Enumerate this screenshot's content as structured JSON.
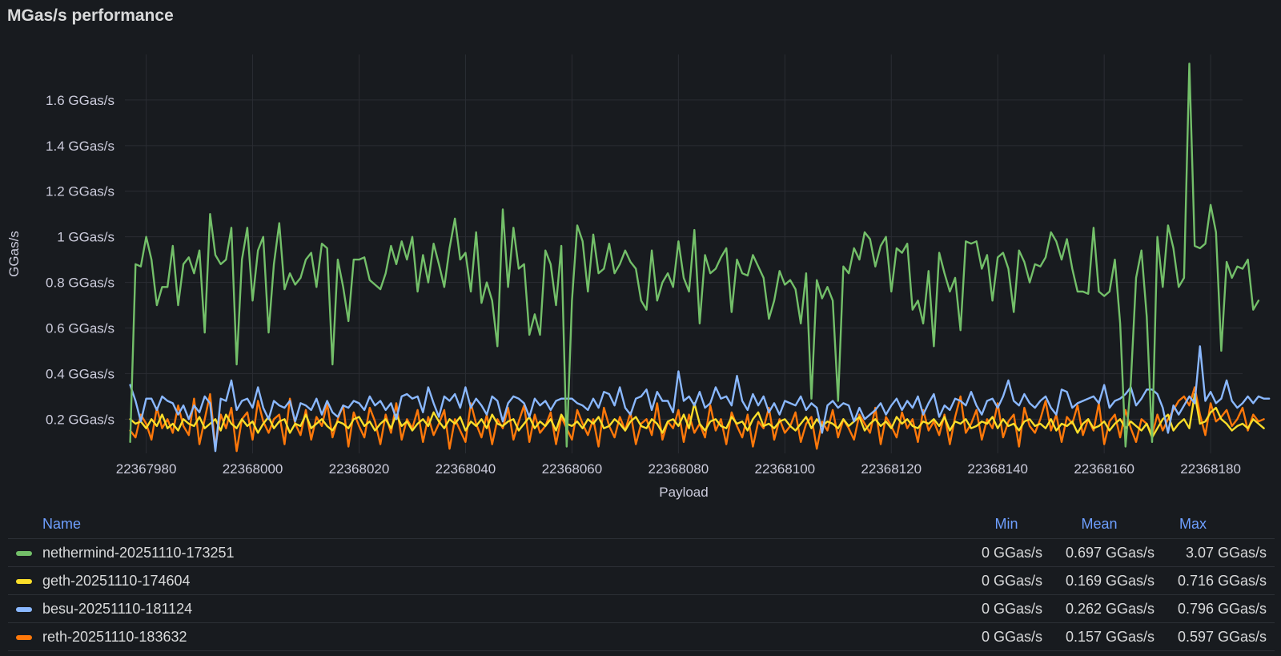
{
  "panel": {
    "title": "MGas/s performance"
  },
  "chart_data": {
    "type": "line",
    "title": "MGas/s performance",
    "xlabel": "Payload",
    "ylabel": "GGas/s",
    "xlim": [
      22367976,
      22368186
    ],
    "ylim": [
      0.05,
      1.8
    ],
    "y_ticks": [
      0.2,
      0.4,
      0.6,
      0.8,
      1.0,
      1.2,
      1.4,
      1.6
    ],
    "y_tick_labels": [
      "0.2 GGas/s",
      "0.4 GGas/s",
      "0.6 GGas/s",
      "0.8 GGas/s",
      "1 GGas/s",
      "1.2 GGas/s",
      "1.4 GGas/s",
      "1.6 GGas/s"
    ],
    "x_ticks": [
      22367980,
      22368000,
      22368020,
      22368040,
      22368060,
      22368080,
      22368100,
      22368120,
      22368140,
      22368160,
      22368180
    ],
    "x_tick_labels": [
      "22367980",
      "22368000",
      "22368020",
      "22368040",
      "22368060",
      "22368080",
      "22368100",
      "22368120",
      "22368140",
      "22368160",
      "22368180"
    ],
    "grid": true,
    "legend_position": "bottom",
    "series": [
      {
        "name": "nethermind-20251110-173251",
        "color": "#73bf69",
        "x_start": 22367977,
        "values": [
          0.1,
          0.88,
          0.87,
          1.0,
          0.9,
          0.7,
          0.78,
          0.78,
          0.96,
          0.7,
          0.88,
          0.91,
          0.84,
          0.94,
          0.58,
          1.1,
          0.92,
          0.88,
          0.9,
          1.04,
          0.44,
          0.9,
          1.04,
          0.72,
          0.94,
          1.0,
          0.58,
          0.88,
          1.06,
          0.77,
          0.84,
          0.79,
          0.82,
          0.9,
          0.93,
          0.78,
          0.97,
          0.95,
          0.44,
          0.9,
          0.78,
          0.63,
          0.9,
          0.9,
          0.91,
          0.81,
          0.79,
          0.77,
          0.84,
          0.96,
          0.88,
          0.98,
          0.9,
          1.0,
          0.76,
          0.92,
          0.8,
          0.97,
          0.88,
          0.78,
          0.95,
          1.08,
          0.9,
          0.93,
          0.76,
          1.02,
          0.71,
          0.8,
          0.72,
          0.52,
          1.12,
          0.78,
          1.04,
          0.86,
          0.88,
          0.57,
          0.66,
          0.57,
          0.94,
          0.88,
          0.7,
          0.96,
          0.08,
          0.72,
          1.05,
          0.98,
          0.76,
          1.01,
          0.84,
          0.86,
          0.97,
          0.84,
          0.88,
          0.94,
          0.89,
          0.86,
          0.72,
          0.68,
          0.94,
          0.72,
          0.8,
          0.84,
          0.78,
          0.98,
          0.82,
          0.76,
          1.03,
          0.62,
          0.92,
          0.84,
          0.86,
          0.91,
          0.95,
          0.67,
          0.9,
          0.84,
          0.83,
          0.92,
          0.87,
          0.82,
          0.64,
          0.72,
          0.85,
          0.79,
          0.81,
          0.77,
          0.62,
          0.84,
          0.29,
          0.81,
          0.73,
          0.78,
          0.72,
          0.28,
          0.87,
          0.84,
          0.95,
          0.9,
          1.02,
          0.99,
          0.87,
          0.96,
          1.0,
          0.76,
          0.95,
          0.93,
          0.97,
          0.68,
          0.72,
          0.62,
          0.85,
          0.52,
          0.93,
          0.84,
          0.76,
          0.82,
          0.59,
          0.98,
          0.97,
          0.98,
          0.86,
          0.92,
          0.72,
          0.91,
          0.93,
          0.86,
          0.67,
          0.94,
          0.89,
          0.8,
          0.88,
          0.87,
          0.91,
          1.02,
          0.98,
          0.9,
          0.99,
          0.86,
          0.76,
          0.76,
          0.75,
          1.04,
          0.76,
          0.74,
          0.76,
          0.9,
          0.62,
          0.08,
          0.36,
          0.82,
          0.94,
          0.65,
          0.1,
          1.0,
          0.78,
          1.05,
          0.95,
          0.78,
          0.82,
          1.76,
          0.96,
          0.95,
          0.97,
          1.14,
          1.02,
          0.5,
          0.89,
          0.82,
          0.87,
          0.86,
          0.9,
          0.68,
          0.72
        ]
      },
      {
        "name": "geth-20251110-174604",
        "color": "#fade2a",
        "x_start": 22367977,
        "values": [
          0.2,
          0.18,
          0.19,
          0.16,
          0.2,
          0.17,
          0.22,
          0.16,
          0.18,
          0.15,
          0.2,
          0.18,
          0.17,
          0.21,
          0.16,
          0.18,
          0.2,
          0.15,
          0.22,
          0.18,
          0.16,
          0.2,
          0.17,
          0.19,
          0.14,
          0.18,
          0.21,
          0.16,
          0.19,
          0.2,
          0.14,
          0.18,
          0.17,
          0.22,
          0.16,
          0.18,
          0.2,
          0.17,
          0.15,
          0.19,
          0.18,
          0.16,
          0.2,
          0.21,
          0.17,
          0.19,
          0.15,
          0.18,
          0.2,
          0.16,
          0.22,
          0.17,
          0.19,
          0.15,
          0.18,
          0.2,
          0.17,
          0.23,
          0.19,
          0.16,
          0.2,
          0.18,
          0.21,
          0.15,
          0.19,
          0.17,
          0.2,
          0.16,
          0.22,
          0.18,
          0.17,
          0.19,
          0.2,
          0.15,
          0.18,
          0.21,
          0.16,
          0.19,
          0.17,
          0.2,
          0.15,
          0.22,
          0.18,
          0.17,
          0.19,
          0.16,
          0.2,
          0.18,
          0.21,
          0.16,
          0.17,
          0.2,
          0.18,
          0.15,
          0.19,
          0.21,
          0.17,
          0.16,
          0.2,
          0.18,
          0.14,
          0.19,
          0.2,
          0.17,
          0.22,
          0.16,
          0.27,
          0.18,
          0.15,
          0.19,
          0.2,
          0.17,
          0.16,
          0.21,
          0.18,
          0.19,
          0.15,
          0.2,
          0.23,
          0.17,
          0.18,
          0.16,
          0.19,
          0.2,
          0.17,
          0.15,
          0.18,
          0.21,
          0.16,
          0.2,
          0.17,
          0.19,
          0.18,
          0.16,
          0.2,
          0.17,
          0.19,
          0.21,
          0.15,
          0.18,
          0.2,
          0.17,
          0.19,
          0.16,
          0.21,
          0.18,
          0.2,
          0.17,
          0.16,
          0.19,
          0.18,
          0.2,
          0.17,
          0.21,
          0.15,
          0.19,
          0.18,
          0.2,
          0.16,
          0.17,
          0.19,
          0.18,
          0.21,
          0.16,
          0.2,
          0.17,
          0.18,
          0.15,
          0.19,
          0.2,
          0.17,
          0.18,
          0.16,
          0.2,
          0.15,
          0.18,
          0.17,
          0.19,
          0.14,
          0.18,
          0.2,
          0.16,
          0.17,
          0.19,
          0.15,
          0.18,
          0.2,
          0.16,
          0.19,
          0.17,
          0.15,
          0.18,
          0.12,
          0.16,
          0.2,
          0.22,
          0.15,
          0.18,
          0.2,
          0.16,
          0.31,
          0.18,
          0.19,
          0.23,
          0.25,
          0.2,
          0.18,
          0.15,
          0.17,
          0.18,
          0.16,
          0.2,
          0.18,
          0.16
        ]
      },
      {
        "name": "besu-20251110-181124",
        "color": "#8ab8ff",
        "x_start": 22367977,
        "values": [
          0.35,
          0.28,
          0.19,
          0.29,
          0.29,
          0.24,
          0.3,
          0.28,
          0.27,
          0.22,
          0.26,
          0.2,
          0.26,
          0.23,
          0.3,
          0.27,
          0.06,
          0.29,
          0.28,
          0.37,
          0.24,
          0.28,
          0.29,
          0.25,
          0.34,
          0.25,
          0.2,
          0.28,
          0.26,
          0.25,
          0.28,
          0.19,
          0.27,
          0.26,
          0.24,
          0.29,
          0.22,
          0.28,
          0.23,
          0.21,
          0.26,
          0.25,
          0.28,
          0.27,
          0.24,
          0.3,
          0.26,
          0.28,
          0.24,
          0.27,
          0.2,
          0.3,
          0.31,
          0.29,
          0.3,
          0.23,
          0.34,
          0.27,
          0.21,
          0.3,
          0.28,
          0.31,
          0.25,
          0.34,
          0.25,
          0.29,
          0.26,
          0.22,
          0.3,
          0.28,
          0.19,
          0.27,
          0.3,
          0.29,
          0.27,
          0.21,
          0.29,
          0.26,
          0.28,
          0.24,
          0.28,
          0.29,
          0.29,
          0.29,
          0.27,
          0.26,
          0.24,
          0.29,
          0.25,
          0.32,
          0.31,
          0.26,
          0.34,
          0.25,
          0.22,
          0.29,
          0.3,
          0.33,
          0.24,
          0.32,
          0.28,
          0.28,
          0.23,
          0.41,
          0.28,
          0.3,
          0.26,
          0.32,
          0.25,
          0.27,
          0.34,
          0.29,
          0.3,
          0.26,
          0.39,
          0.28,
          0.24,
          0.31,
          0.26,
          0.3,
          0.23,
          0.27,
          0.22,
          0.28,
          0.27,
          0.26,
          0.3,
          0.24,
          0.27,
          0.25,
          0.14,
          0.26,
          0.28,
          0.25,
          0.27,
          0.26,
          0.19,
          0.25,
          0.2,
          0.22,
          0.24,
          0.27,
          0.22,
          0.26,
          0.29,
          0.24,
          0.28,
          0.25,
          0.3,
          0.22,
          0.27,
          0.31,
          0.21,
          0.26,
          0.24,
          0.29,
          0.28,
          0.26,
          0.32,
          0.26,
          0.22,
          0.28,
          0.29,
          0.25,
          0.3,
          0.37,
          0.28,
          0.26,
          0.31,
          0.27,
          0.25,
          0.28,
          0.3,
          0.25,
          0.22,
          0.33,
          0.32,
          0.25,
          0.27,
          0.28,
          0.29,
          0.3,
          0.27,
          0.35,
          0.25,
          0.28,
          0.29,
          0.31,
          0.34,
          0.26,
          0.29,
          0.33,
          0.33,
          0.31,
          0.25,
          0.14,
          0.26,
          0.22,
          0.26,
          0.3,
          0.27,
          0.52,
          0.28,
          0.32,
          0.27,
          0.29,
          0.37,
          0.28,
          0.25,
          0.27,
          0.3,
          0.27,
          0.3,
          0.29,
          0.29
        ]
      },
      {
        "name": "reth-20251110-183632",
        "color": "#ff780a",
        "x_start": 22367977,
        "values": [
          0.15,
          0.12,
          0.22,
          0.18,
          0.11,
          0.25,
          0.16,
          0.2,
          0.14,
          0.26,
          0.17,
          0.13,
          0.29,
          0.09,
          0.2,
          0.31,
          0.08,
          0.22,
          0.16,
          0.25,
          0.06,
          0.2,
          0.23,
          0.11,
          0.28,
          0.19,
          0.14,
          0.2,
          0.22,
          0.09,
          0.29,
          0.18,
          0.13,
          0.24,
          0.11,
          0.21,
          0.17,
          0.27,
          0.12,
          0.2,
          0.26,
          0.08,
          0.23,
          0.17,
          0.12,
          0.25,
          0.19,
          0.09,
          0.22,
          0.14,
          0.27,
          0.11,
          0.2,
          0.16,
          0.24,
          0.1,
          0.21,
          0.13,
          0.18,
          0.24,
          0.07,
          0.2,
          0.15,
          0.1,
          0.27,
          0.18,
          0.12,
          0.22,
          0.09,
          0.2,
          0.16,
          0.25,
          0.11,
          0.19,
          0.26,
          0.1,
          0.22,
          0.14,
          0.17,
          0.23,
          0.09,
          0.21,
          0.16,
          0.11,
          0.24,
          0.18,
          0.13,
          0.2,
          0.08,
          0.25,
          0.17,
          0.12,
          0.21,
          0.15,
          0.23,
          0.09,
          0.18,
          0.2,
          0.13,
          0.27,
          0.11,
          0.19,
          0.16,
          0.24,
          0.1,
          0.22,
          0.14,
          0.18,
          0.12,
          0.26,
          0.15,
          0.2,
          0.09,
          0.23,
          0.17,
          0.12,
          0.22,
          0.08,
          0.19,
          0.16,
          0.25,
          0.11,
          0.2,
          0.14,
          0.17,
          0.23,
          0.1,
          0.18,
          0.21,
          0.07,
          0.19,
          0.15,
          0.24,
          0.12,
          0.2,
          0.16,
          0.11,
          0.22,
          0.18,
          0.14,
          0.25,
          0.09,
          0.21,
          0.17,
          0.12,
          0.23,
          0.16,
          0.2,
          0.1,
          0.24,
          0.15,
          0.19,
          0.13,
          0.22,
          0.09,
          0.21,
          0.3,
          0.14,
          0.18,
          0.24,
          0.11,
          0.2,
          0.16,
          0.27,
          0.12,
          0.19,
          0.22,
          0.08,
          0.25,
          0.17,
          0.14,
          0.2,
          0.28,
          0.15,
          0.22,
          0.1,
          0.21,
          0.18,
          0.26,
          0.13,
          0.2,
          0.15,
          0.27,
          0.09,
          0.19,
          0.22,
          0.12,
          0.24,
          0.16,
          0.1,
          0.2,
          0.18,
          0.13,
          0.22,
          0.15,
          0.2,
          0.24,
          0.28,
          0.3,
          0.26,
          0.34,
          0.22,
          0.13,
          0.27,
          0.19,
          0.21,
          0.24,
          0.17,
          0.2,
          0.25,
          0.15,
          0.22,
          0.19,
          0.2
        ]
      }
    ]
  },
  "legend": {
    "headers": {
      "name": "Name",
      "min": "Min",
      "mean": "Mean",
      "max": "Max"
    },
    "rows": [
      {
        "name": "nethermind-20251110-173251",
        "color": "#73bf69",
        "min": "0 GGas/s",
        "mean": "0.697 GGas/s",
        "max": "3.07 GGas/s"
      },
      {
        "name": "geth-20251110-174604",
        "color": "#fade2a",
        "min": "0 GGas/s",
        "mean": "0.169 GGas/s",
        "max": "0.716 GGas/s"
      },
      {
        "name": "besu-20251110-181124",
        "color": "#8ab8ff",
        "min": "0 GGas/s",
        "mean": "0.262 GGas/s",
        "max": "0.796 GGas/s"
      },
      {
        "name": "reth-20251110-183632",
        "color": "#ff780a",
        "min": "0 GGas/s",
        "mean": "0.157 GGas/s",
        "max": "0.597 GGas/s"
      }
    ]
  }
}
